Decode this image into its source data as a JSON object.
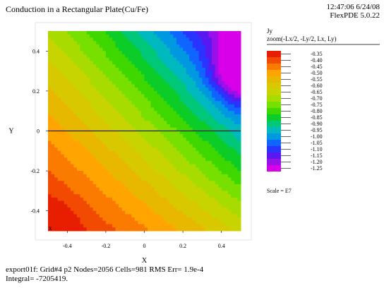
{
  "header": {
    "title": "Conduction in a Rectangular Plate(Cu/Fe)",
    "timestamp": "12:47:06 6/24/08",
    "version": "FlexPDE 5.0.22"
  },
  "chart_data": {
    "type": "heatmap",
    "title": "Conduction in a Rectangular Plate(Cu/Fe)",
    "variable": "Jy",
    "zoom": "zoom(-Lx/2, -Ly/2, Lx, Ly)",
    "xlabel": "X",
    "ylabel": "Y",
    "xlim": [
      -0.5,
      0.5
    ],
    "ylim": [
      -0.5,
      0.5
    ],
    "x_ticks": [
      "-0.4",
      "-0.2",
      "0",
      "0.2",
      "0.4"
    ],
    "y_ticks": [
      "0.4",
      "0.2",
      "0",
      "-0.2",
      "-0.4"
    ],
    "scale_label": "Scale = E7",
    "levels": [
      "-0.35",
      "-0.40",
      "-0.45",
      "-0.50",
      "-0.55",
      "-0.60",
      "-0.65",
      "-0.70",
      "-0.75",
      "-0.80",
      "-0.85",
      "-0.90",
      "-0.95",
      "-1.00",
      "-1.05",
      "-1.10",
      "-1.15",
      "-1.20",
      "-1.25"
    ],
    "level_colors": [
      "#e81e00",
      "#f24a00",
      "#fb7a00",
      "#ffa400",
      "#e8b800",
      "#d8c800",
      "#c8d400",
      "#a8dc00",
      "#78e000",
      "#3ed800",
      "#0ccc28",
      "#00c878",
      "#00b8c0",
      "#0098e0",
      "#1064ff",
      "#2a34ff",
      "#5a18f0",
      "#9a10e8",
      "#d800e8"
    ],
    "divider_line_y": 0,
    "marker": "x"
  },
  "footer": {
    "line1": "export01f:  Grid#4  p2  Nodes=2056 Cells=981 RMS Err= 1.9e-4",
    "line2": "Integral= -7205419."
  }
}
